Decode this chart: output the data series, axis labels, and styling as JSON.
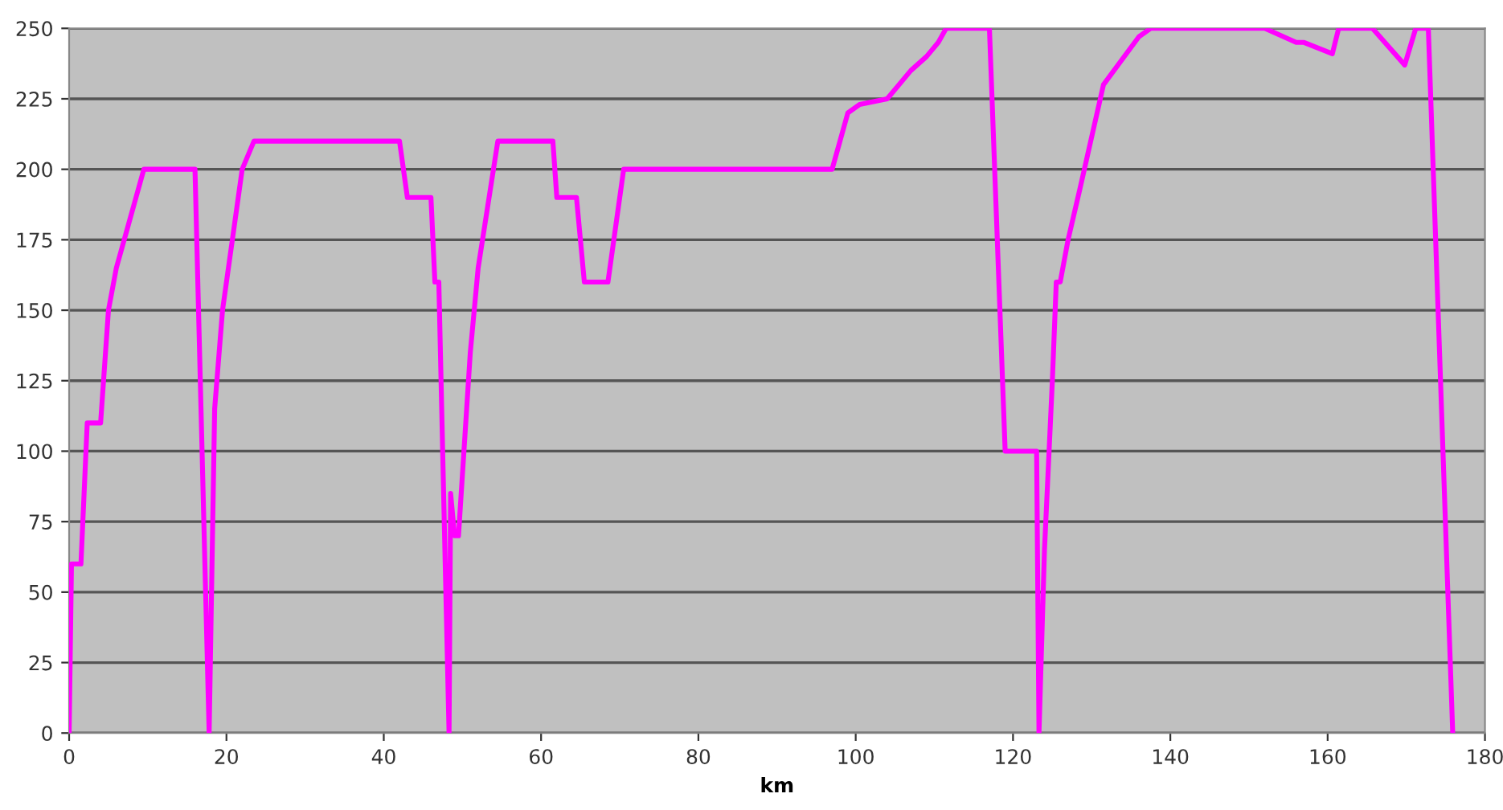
{
  "chart_data": {
    "type": "line",
    "xlabel": "km",
    "series": [
      {
        "color": "#ff00ff",
        "x": [
          0,
          0.3,
          1.5,
          2.3,
          4,
          5,
          6,
          7.5,
          8.5,
          9.5,
          16,
          17.8,
          18.5,
          19.5,
          21,
          22,
          23.5,
          42,
          43,
          46,
          46.5,
          47,
          48.3,
          48.5,
          49,
          49.5,
          51,
          52,
          54.5,
          61.5,
          62,
          64.5,
          65.5,
          68.5,
          70.5,
          97,
          98,
          99,
          100.5,
          104,
          107,
          109,
          110.5,
          111.5,
          117,
          119,
          123,
          123.3,
          124,
          125,
          125.5,
          126,
          127,
          128.5,
          131.5,
          136,
          137.5,
          152,
          156,
          157,
          160.6,
          161.4,
          165.7,
          169.8,
          171.2,
          172.8,
          175.9
        ],
        "values": [
          0,
          60,
          60,
          110,
          110,
          150,
          165,
          180,
          190,
          200,
          200,
          0,
          115,
          150,
          180,
          200,
          210,
          210,
          190,
          190,
          160,
          160,
          0,
          85,
          70,
          70,
          135,
          165,
          210,
          210,
          190,
          190,
          160,
          160,
          200,
          200,
          210,
          220,
          223,
          225,
          235,
          240,
          245,
          250,
          250,
          100,
          100,
          0,
          65,
          125,
          160,
          160,
          175,
          193,
          230,
          247,
          250,
          250,
          245,
          245,
          241,
          250,
          250,
          237,
          250,
          250,
          0
        ]
      }
    ],
    "xlim": [
      0,
      180
    ],
    "xticks": [
      0,
      20,
      40,
      60,
      80,
      100,
      120,
      140,
      160,
      180
    ],
    "ylim": [
      0,
      250
    ],
    "yticks": [
      0,
      25,
      50,
      75,
      100,
      125,
      150,
      175,
      200,
      225,
      250
    ],
    "grid": "y",
    "marker": "none",
    "line_style": "solid"
  }
}
